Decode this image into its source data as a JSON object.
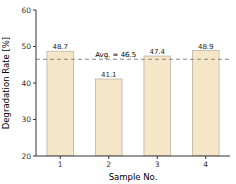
{
  "chart_data": {
    "type": "bar",
    "categories": [
      "1",
      "2",
      "3",
      "4"
    ],
    "values": [
      48.7,
      41.1,
      47.4,
      48.9
    ],
    "color": "#f5e6c8",
    "xlabel": "Sample No.",
    "ylabel": "Degradation Rate [%]",
    "ylim": [
      20,
      60
    ],
    "yticks": [
      20,
      30,
      40,
      50,
      60
    ],
    "grid": false,
    "data_labels": true,
    "annotations": [
      {
        "text": "Avg. = 46.5",
        "y": 46.5
      }
    ]
  }
}
